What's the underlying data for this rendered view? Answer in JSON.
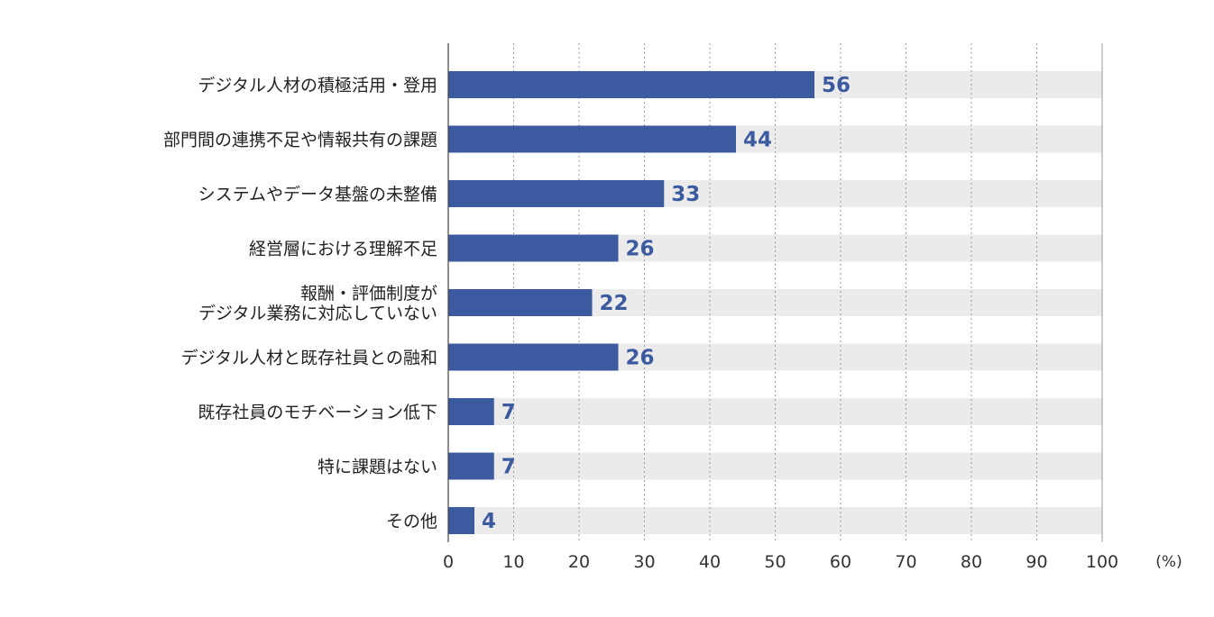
{
  "chart_data": {
    "type": "bar",
    "orientation": "horizontal",
    "categories": [
      [
        "デジタル人材の積極活用・登用"
      ],
      [
        "部門間の連携不足や情報共有の課題"
      ],
      [
        "システムやデータ基盤の未整備"
      ],
      [
        "経営層における理解不足"
      ],
      [
        "報酬・評価制度が",
        "デジタル業務に対応していない"
      ],
      [
        "デジタル人材と既存社員との融和"
      ],
      [
        "既存社員のモチベーション低下"
      ],
      [
        "特に課題はない"
      ],
      [
        "その他"
      ]
    ],
    "values": [
      56,
      44,
      33,
      26,
      22,
      26,
      7,
      7,
      4
    ],
    "xlim": [
      0,
      100
    ],
    "xticks": [
      0,
      10,
      20,
      30,
      40,
      50,
      60,
      70,
      80,
      90,
      100
    ],
    "x_unit": "(%)",
    "grid": "vertical dotted",
    "bar_color": "#3c5aa0",
    "track_color": "#ebebeb",
    "value_label_color": "#3c5aa0"
  }
}
